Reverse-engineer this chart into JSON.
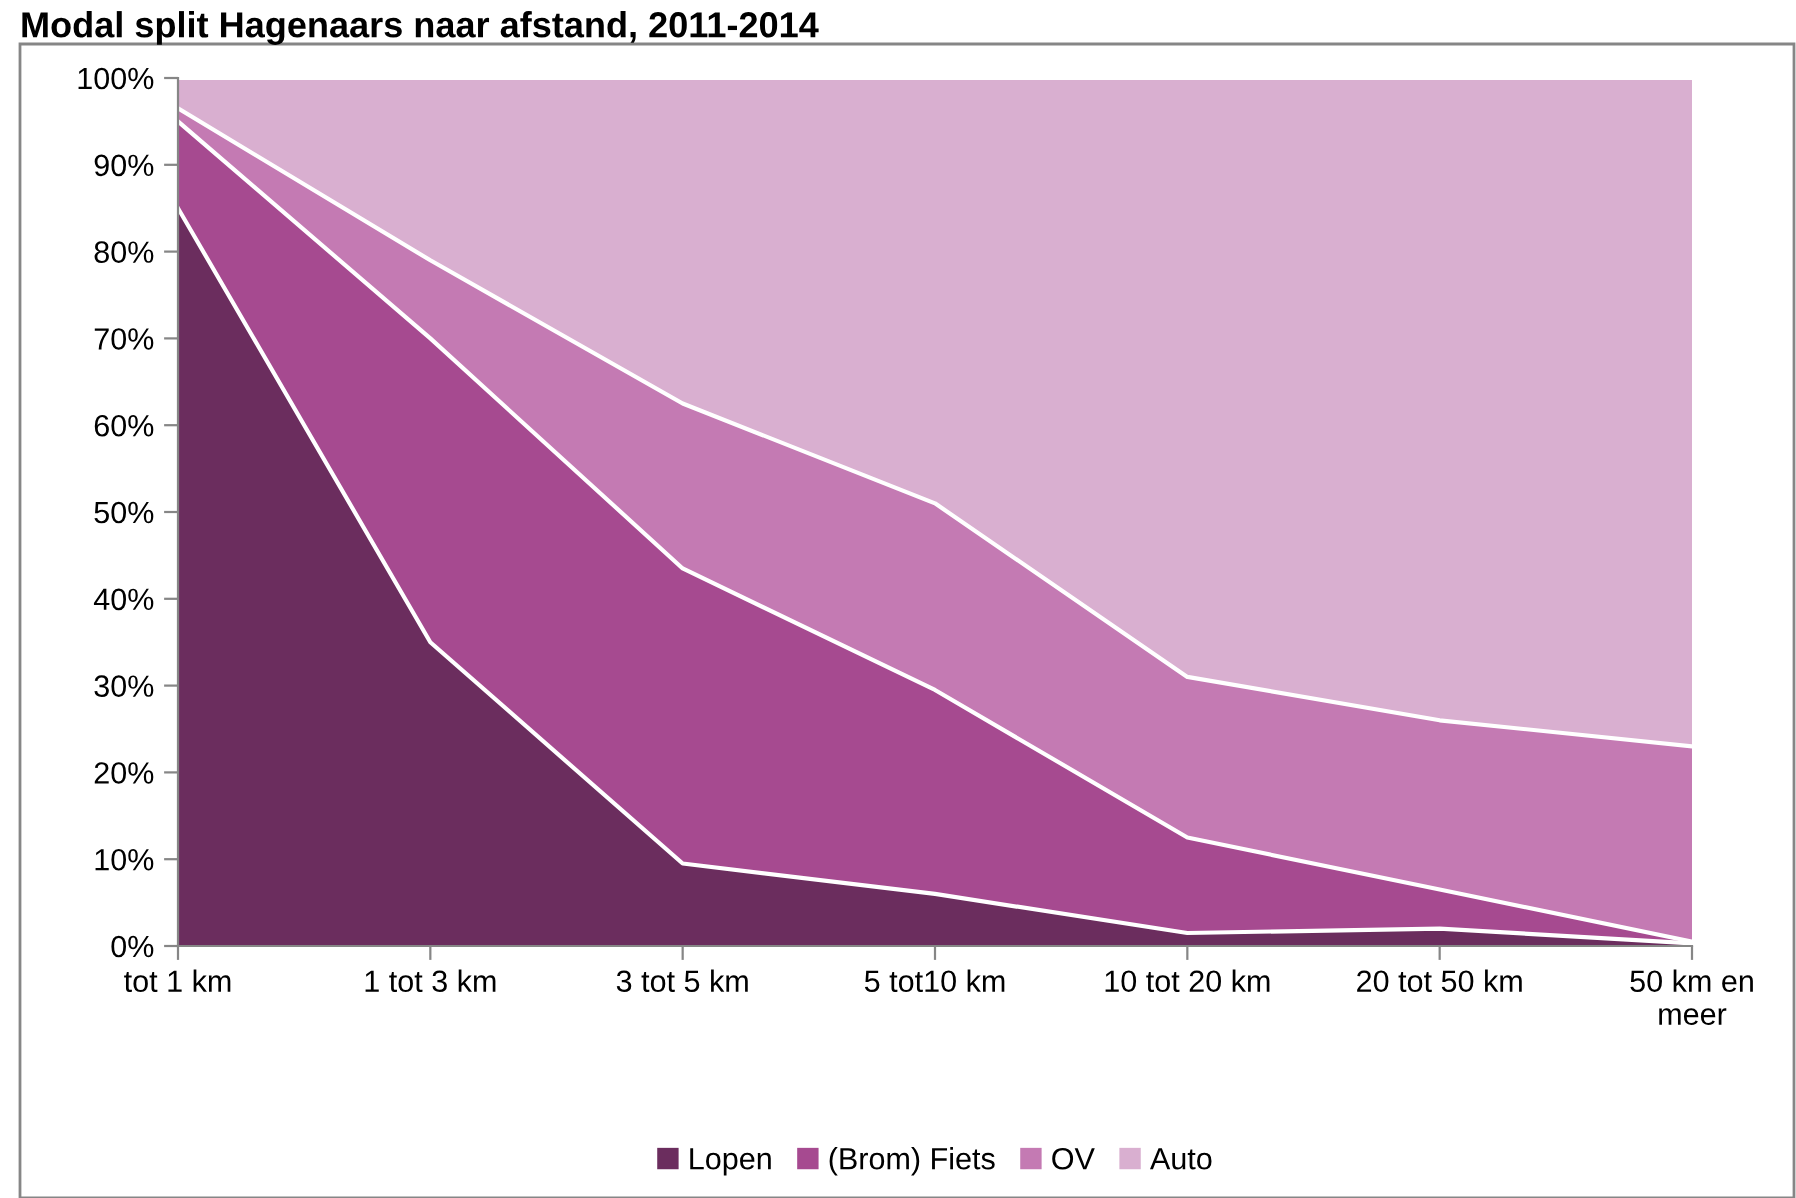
{
  "chart_data": {
    "type": "area",
    "stacked": true,
    "title": "Modal split Hagenaars naar afstand, 2011-2014",
    "categories": [
      "tot 1 km",
      "1 tot 3 km",
      "3 tot 5 km",
      "5 tot10 km",
      "10 tot 20 km",
      "20 tot 50 km",
      "50 km en meer"
    ],
    "series": [
      {
        "name": "Lopen",
        "color": "#6b2d5e",
        "values": [
          85,
          35,
          9.5,
          6,
          1.5,
          2,
          0.3
        ]
      },
      {
        "name": "(Brom) Fiets",
        "color": "#a64a90",
        "values": [
          10,
          35,
          34,
          23.5,
          11,
          4.5,
          0.2
        ]
      },
      {
        "name": "OV",
        "color": "#c47ab3",
        "values": [
          1.5,
          9,
          19,
          21.5,
          18.5,
          19.5,
          22.5
        ]
      },
      {
        "name": "Auto",
        "color": "#d9afd0",
        "values": [
          3.5,
          21,
          37.5,
          49,
          69,
          74,
          77
        ]
      }
    ],
    "ylim": [
      0,
      100
    ],
    "yticks": [
      {
        "value": 0,
        "label": "0%"
      },
      {
        "value": 10,
        "label": "10%"
      },
      {
        "value": 20,
        "label": "20%"
      },
      {
        "value": 30,
        "label": "30%"
      },
      {
        "value": 40,
        "label": "40%"
      },
      {
        "value": 50,
        "label": "50%"
      },
      {
        "value": 60,
        "label": "60%"
      },
      {
        "value": 70,
        "label": "70%"
      },
      {
        "value": 80,
        "label": "80%"
      },
      {
        "value": 90,
        "label": "90%"
      },
      {
        "value": 100,
        "label": "100%"
      }
    ],
    "grid": false,
    "legend": "bottom"
  }
}
